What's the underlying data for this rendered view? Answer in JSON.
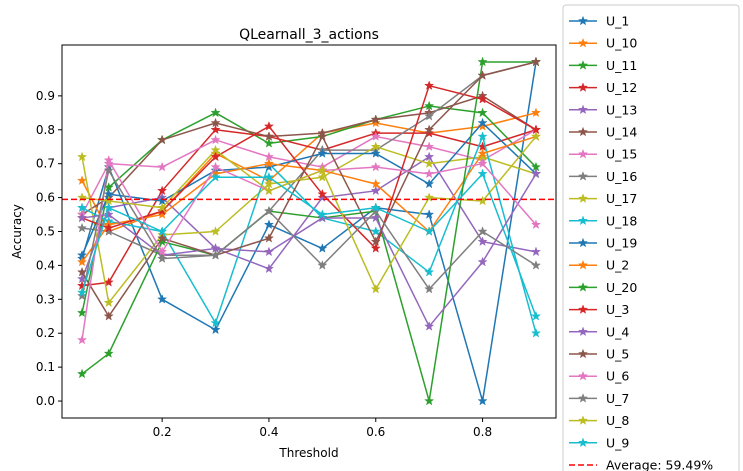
{
  "chart_data": {
    "type": "line",
    "title": "QLearnall_3_actions",
    "xlabel": "Threshold",
    "ylabel": "Accuracy",
    "xlim": [
      0.0125,
      0.9375
    ],
    "ylim": [
      -0.05,
      1.05
    ],
    "x": [
      0.05,
      0.1,
      0.2,
      0.3,
      0.4,
      0.5,
      0.6,
      0.7,
      0.8,
      0.9
    ],
    "x_ticks": [
      0.2,
      0.4,
      0.6,
      0.8
    ],
    "x_tick_labels": [
      "0.2",
      "0.4",
      "0.6",
      "0.8"
    ],
    "y_ticks": [
      0.0,
      0.1,
      0.2,
      0.3,
      0.4,
      0.5,
      0.6,
      0.7,
      0.8,
      0.9
    ],
    "y_tick_labels": [
      "0.0",
      "0.1",
      "0.2",
      "0.3",
      "0.4",
      "0.5",
      "0.6",
      "0.7",
      "0.8",
      "0.9"
    ],
    "marker": "star",
    "grid": false,
    "legend_position": "outside-right",
    "series": [
      {
        "name": "U_1",
        "color": "#1f77b4",
        "values": [
          0.42,
          0.69,
          0.3,
          0.21,
          0.52,
          0.45,
          0.57,
          0.55,
          0.0,
          1.0
        ]
      },
      {
        "name": "U_10",
        "color": "#ff7f0e",
        "values": [
          0.65,
          0.5,
          0.56,
          0.73,
          0.65,
          0.79,
          0.82,
          0.79,
          0.81,
          0.85
        ]
      },
      {
        "name": "U_11",
        "color": "#2ca02c",
        "values": [
          0.26,
          0.63,
          0.77,
          0.85,
          0.76,
          0.78,
          0.83,
          0.87,
          0.85,
          0.69
        ]
      },
      {
        "name": "U_12",
        "color": "#d62728",
        "values": [
          0.34,
          0.35,
          0.62,
          0.8,
          0.78,
          0.74,
          0.79,
          0.79,
          0.75,
          0.8
        ]
      },
      {
        "name": "U_13",
        "color": "#9467bd",
        "values": [
          0.36,
          0.57,
          0.6,
          0.45,
          0.39,
          0.6,
          0.62,
          0.72,
          0.47,
          0.44
        ]
      },
      {
        "name": "U_14",
        "color": "#8c564b",
        "values": [
          0.55,
          0.6,
          0.77,
          0.82,
          0.78,
          0.79,
          0.83,
          0.85,
          0.9,
          0.8
        ]
      },
      {
        "name": "U_15",
        "color": "#e377c2",
        "values": [
          0.55,
          0.7,
          0.69,
          0.77,
          0.72,
          0.69,
          0.78,
          0.75,
          0.71,
          0.8
        ]
      },
      {
        "name": "U_16",
        "color": "#7f7f7f",
        "values": [
          0.51,
          0.5,
          0.43,
          0.43,
          0.56,
          0.74,
          0.74,
          0.84,
          0.96,
          1.0
        ]
      },
      {
        "name": "U_17",
        "color": "#bcbd22",
        "values": [
          0.72,
          0.29,
          0.49,
          0.5,
          0.64,
          0.66,
          0.75,
          0.7,
          0.72,
          0.67
        ]
      },
      {
        "name": "U_18",
        "color": "#17becf",
        "values": [
          0.57,
          0.53,
          0.5,
          0.23,
          0.7,
          0.54,
          0.5,
          0.38,
          0.78,
          0.2
        ]
      },
      {
        "name": "U_19",
        "color": "#1f77b4",
        "values": [
          0.43,
          0.61,
          0.59,
          0.68,
          0.69,
          0.73,
          0.73,
          0.64,
          0.82,
          0.67
        ]
      },
      {
        "name": "U_2",
        "color": "#ff7f0e",
        "values": [
          0.41,
          0.52,
          0.55,
          0.67,
          0.7,
          0.68,
          0.64,
          0.5,
          0.73,
          0.78
        ]
      },
      {
        "name": "U_20",
        "color": "#2ca02c",
        "values": [
          0.08,
          0.14,
          0.47,
          0.43,
          0.56,
          0.54,
          0.56,
          0.0,
          1.0,
          1.0
        ]
      },
      {
        "name": "U_3",
        "color": "#d62728",
        "values": [
          0.54,
          0.51,
          0.56,
          0.72,
          0.81,
          0.61,
          0.45,
          0.93,
          0.89,
          0.8
        ]
      },
      {
        "name": "U_4",
        "color": "#9467bd",
        "values": [
          0.54,
          0.55,
          0.43,
          0.45,
          0.44,
          0.54,
          0.54,
          0.22,
          0.41,
          0.67
        ]
      },
      {
        "name": "U_5",
        "color": "#8c564b",
        "values": [
          0.38,
          0.25,
          0.48,
          0.43,
          0.48,
          0.78,
          0.47,
          0.8,
          0.96,
          1.0
        ]
      },
      {
        "name": "U_6",
        "color": "#e377c2",
        "values": [
          0.18,
          0.71,
          0.44,
          0.69,
          0.62,
          0.68,
          0.69,
          0.67,
          0.7,
          0.52
        ]
      },
      {
        "name": "U_7",
        "color": "#7f7f7f",
        "values": [
          0.31,
          0.68,
          0.42,
          0.43,
          0.56,
          0.4,
          0.56,
          0.33,
          0.5,
          0.4
        ]
      },
      {
        "name": "U_8",
        "color": "#bcbd22",
        "values": [
          0.6,
          0.59,
          0.57,
          0.74,
          0.62,
          0.68,
          0.33,
          0.6,
          0.59,
          0.78
        ]
      },
      {
        "name": "U_9",
        "color": "#17becf",
        "values": [
          0.32,
          0.57,
          0.5,
          0.66,
          0.66,
          0.55,
          0.57,
          0.5,
          0.67,
          0.25
        ]
      }
    ],
    "average_line": {
      "label": "Average: 59.49%",
      "value": 0.5949,
      "color": "#ff0000",
      "style": "dashed"
    }
  }
}
